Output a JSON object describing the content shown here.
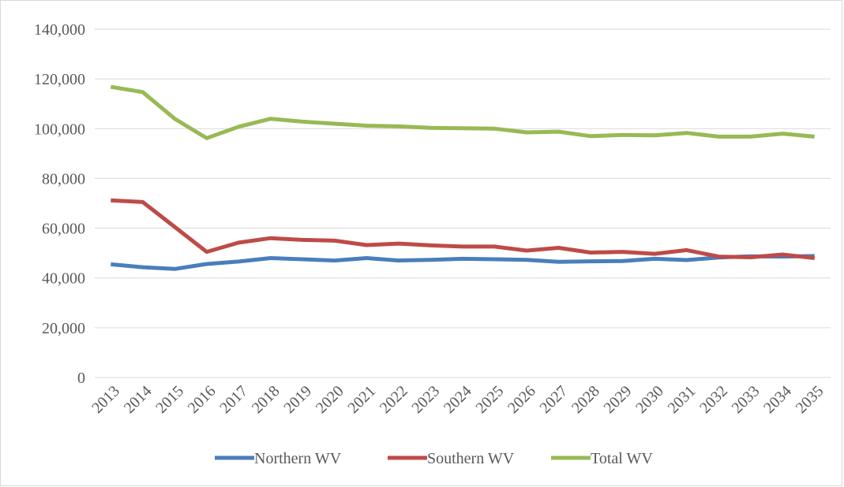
{
  "chart_data": {
    "type": "line",
    "categories": [
      "2013",
      "2014",
      "2015",
      "2016",
      "2017",
      "2018",
      "2019",
      "2020",
      "2021",
      "2022",
      "2023",
      "2024",
      "2025",
      "2026",
      "2027",
      "2028",
      "2029",
      "2030",
      "2031",
      "2032",
      "2033",
      "2034",
      "2035"
    ],
    "series": [
      {
        "name": "Northern WV",
        "color": "#4a7ebb",
        "values": [
          45500,
          44300,
          43600,
          45600,
          46600,
          48000,
          47500,
          47000,
          48000,
          47000,
          47300,
          47700,
          47500,
          47300,
          46500,
          46700,
          46800,
          47700,
          47200,
          48200,
          48700,
          48600,
          48800
        ]
      },
      {
        "name": "Southern WV",
        "color": "#be4b48",
        "values": [
          71200,
          70500,
          60500,
          50500,
          54200,
          56000,
          55300,
          55000,
          53200,
          53800,
          53100,
          52600,
          52600,
          51000,
          52100,
          50200,
          50500,
          49700,
          51200,
          48600,
          48300,
          49400,
          48000
        ]
      },
      {
        "name": "Total WV",
        "color": "#98b954",
        "values": [
          116800,
          114700,
          104000,
          96200,
          100800,
          104000,
          102800,
          102000,
          101200,
          100900,
          100300,
          100200,
          100000,
          98500,
          98800,
          97000,
          97500,
          97300,
          98300,
          96800,
          96800,
          98000,
          96800
        ]
      }
    ],
    "ylim": [
      0,
      140000
    ],
    "yticks": [
      0,
      {
        "value": 20000,
        "label": "20,000"
      },
      {
        "value": 40000,
        "label": "40,000"
      },
      {
        "value": 60000,
        "label": "60,000"
      },
      {
        "value": 80000,
        "label": "80,000"
      },
      {
        "value": 100000,
        "label": "100,000"
      },
      {
        "value": 120000,
        "label": "120,000"
      },
      {
        "value": 140000,
        "label": "140,000"
      }
    ],
    "grid": true,
    "legend": "bottom"
  }
}
